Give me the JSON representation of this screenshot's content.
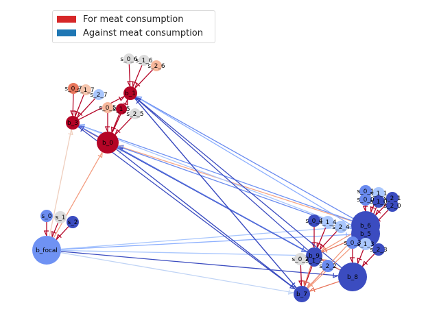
{
  "legend": {
    "items": [
      {
        "label": "For meat consumption",
        "color": "#d62728"
      },
      {
        "label": "Against meat consumption",
        "color": "#1f77b4"
      }
    ]
  },
  "nodes": [
    {
      "id": "s_0_6",
      "label": "s_0_6",
      "color": "#dcdcdc"
    },
    {
      "id": "s_1_6",
      "label": "s_1_6",
      "color": "#dcdcdc"
    },
    {
      "id": "s_2_6",
      "label": "s_2_6",
      "color": "#f7b89c"
    },
    {
      "id": "s_0_7",
      "label": "s_0_7",
      "color": "#e8765c"
    },
    {
      "id": "s_1_7",
      "label": "s_1_7",
      "color": "#f5c4ac"
    },
    {
      "id": "s_2_7",
      "label": "s_2_7",
      "color": "#aac7fd"
    },
    {
      "id": "b_1",
      "label": "b_1",
      "color": "#b40426"
    },
    {
      "id": "s_0_5",
      "label": "s_0_5",
      "color": "#f7b89c"
    },
    {
      "id": "s_1_5",
      "label": "s_1_5",
      "color": "#b40426"
    },
    {
      "id": "s_2_5",
      "label": "s_2_5",
      "color": "#dcdcdc"
    },
    {
      "id": "b_3",
      "label": "b_3",
      "color": "#b40426"
    },
    {
      "id": "b_0",
      "label": "b_0",
      "color": "#b40426"
    },
    {
      "id": "s_0",
      "label": "s_0",
      "color": "#6a8bef"
    },
    {
      "id": "s_1",
      "label": "s_1",
      "color": "#dcdcdc"
    },
    {
      "id": "s_2",
      "label": "s_2",
      "color": "#3b4cc0"
    },
    {
      "id": "b_focal",
      "label": "b_focal",
      "color": "#6f92f3"
    },
    {
      "id": "s_0_1",
      "label": "s_0_1",
      "color": "#6a8bef"
    },
    {
      "id": "s_1_1",
      "label": "s_1_1",
      "color": "#aac7fd"
    },
    {
      "id": "s_2_1",
      "label": "s_2_1",
      "color": "#3b4cc0"
    },
    {
      "id": "s_0_0",
      "label": "s_0_0",
      "color": "#6a8bef"
    },
    {
      "id": "s_1_0",
      "label": "s_1_0",
      "color": "#3b4cc0"
    },
    {
      "id": "s_2_0",
      "label": "s_2_0",
      "color": "#3b4cc0"
    },
    {
      "id": "b_6",
      "label": "b_6",
      "color": "#3b4cc0"
    },
    {
      "id": "b_5",
      "label": "b_5",
      "color": "#3b4cc0"
    },
    {
      "id": "s_0_4",
      "label": "s_0_4",
      "color": "#3b4cc0"
    },
    {
      "id": "s_1_4",
      "label": "s_1_4",
      "color": "#aac7fd"
    },
    {
      "id": "s_2_4",
      "label": "s_2_4",
      "color": "#aac7fd"
    },
    {
      "id": "s_0_3",
      "label": "s_0_3",
      "color": "#6a8bef"
    },
    {
      "id": "s_1_3",
      "label": "s_1_3",
      "color": "#aac7fd"
    },
    {
      "id": "s_2_3",
      "label": "s_2_3",
      "color": "#3b4cc0"
    },
    {
      "id": "b_9",
      "label": "b_9",
      "color": "#3b4cc0"
    },
    {
      "id": "s_0_2",
      "label": "s_0_2",
      "color": "#dcdcdc"
    },
    {
      "id": "s_1_2",
      "label": "s_1_2",
      "color": "#3b4cc0"
    },
    {
      "id": "s_2_2",
      "label": "s_2_2",
      "color": "#6a8bef"
    },
    {
      "id": "b_8",
      "label": "b_8",
      "color": "#3b4cc0"
    },
    {
      "id": "b_7",
      "label": "b_7",
      "color": "#3b4cc0"
    }
  ],
  "edges": [
    {
      "from": "s_0_6",
      "to": "b_1",
      "color": "#b40426"
    },
    {
      "from": "s_1_6",
      "to": "b_1",
      "color": "#b40426"
    },
    {
      "from": "s_2_6",
      "to": "b_1",
      "color": "#b40426"
    },
    {
      "from": "s_0_7",
      "to": "b_3",
      "color": "#b40426"
    },
    {
      "from": "s_1_7",
      "to": "b_3",
      "color": "#b40426"
    },
    {
      "from": "s_2_7",
      "to": "b_3",
      "color": "#b40426"
    },
    {
      "from": "s_0_5",
      "to": "b_0",
      "color": "#b40426"
    },
    {
      "from": "s_1_5",
      "to": "b_0",
      "color": "#b40426"
    },
    {
      "from": "s_2_5",
      "to": "b_0",
      "color": "#b40426"
    },
    {
      "from": "b_0",
      "to": "b_1",
      "color": "#b40426"
    },
    {
      "from": "b_0",
      "to": "b_3",
      "color": "#b40426"
    },
    {
      "from": "b_3",
      "to": "b_1",
      "color": "#b40426"
    },
    {
      "from": "s_0",
      "to": "b_focal",
      "color": "#b40426"
    },
    {
      "from": "s_1",
      "to": "b_focal",
      "color": "#b40426"
    },
    {
      "from": "s_2",
      "to": "b_focal",
      "color": "#b40426"
    },
    {
      "from": "b_focal",
      "to": "b_0",
      "color": "#f39c7f"
    },
    {
      "from": "b_focal",
      "to": "b_3",
      "color": "#efcebd"
    },
    {
      "from": "b_focal",
      "to": "b_6",
      "color": "#aac7fd"
    },
    {
      "from": "b_focal",
      "to": "b_5",
      "color": "#8caffe"
    },
    {
      "from": "b_focal",
      "to": "b_9",
      "color": "#aac7fd"
    },
    {
      "from": "b_focal",
      "to": "b_8",
      "color": "#3b4cc0"
    },
    {
      "from": "b_focal",
      "to": "b_7",
      "color": "#c0d4f5"
    },
    {
      "from": "s_0_1",
      "to": "b_6",
      "color": "#b40426"
    },
    {
      "from": "s_1_1",
      "to": "b_6",
      "color": "#b40426"
    },
    {
      "from": "s_2_1",
      "to": "b_6",
      "color": "#b40426"
    },
    {
      "from": "s_0_0",
      "to": "b_5",
      "color": "#b40426"
    },
    {
      "from": "s_1_0",
      "to": "b_5",
      "color": "#b40426"
    },
    {
      "from": "s_2_0",
      "to": "b_5",
      "color": "#b40426"
    },
    {
      "from": "s_0_4",
      "to": "b_9",
      "color": "#b40426"
    },
    {
      "from": "s_1_4",
      "to": "b_9",
      "color": "#b40426"
    },
    {
      "from": "s_2_4",
      "to": "b_9",
      "color": "#b40426"
    },
    {
      "from": "s_0_3",
      "to": "b_8",
      "color": "#b40426"
    },
    {
      "from": "s_1_3",
      "to": "b_8",
      "color": "#b40426"
    },
    {
      "from": "s_2_3",
      "to": "b_8",
      "color": "#b40426"
    },
    {
      "from": "s_0_2",
      "to": "b_7",
      "color": "#b40426"
    },
    {
      "from": "s_1_2",
      "to": "b_7",
      "color": "#b40426"
    },
    {
      "from": "s_2_2",
      "to": "b_7",
      "color": "#b40426"
    },
    {
      "from": "b_6",
      "to": "b_1",
      "color": "#6a8bef"
    },
    {
      "from": "b_6",
      "to": "b_0",
      "color": "#f7a889"
    },
    {
      "from": "b_6",
      "to": "b_3",
      "color": "#6f92f3"
    },
    {
      "from": "b_5",
      "to": "b_1",
      "color": "#8caffe"
    },
    {
      "from": "b_5",
      "to": "b_0",
      "color": "#6a8bef"
    },
    {
      "from": "b_5",
      "to": "b_3",
      "color": "#aac7fd"
    },
    {
      "from": "b_8",
      "to": "b_1",
      "color": "#3b4cc0"
    },
    {
      "from": "b_8",
      "to": "b_0",
      "color": "#3b4cc0"
    },
    {
      "from": "b_8",
      "to": "b_3",
      "color": "#4358cb"
    },
    {
      "from": "b_9",
      "to": "b_1",
      "color": "#3b4cc0"
    },
    {
      "from": "b_9",
      "to": "b_0",
      "color": "#3b4cc0"
    },
    {
      "from": "b_9",
      "to": "b_3",
      "color": "#5572df"
    },
    {
      "from": "b_7",
      "to": "b_1",
      "color": "#3b4cc0"
    },
    {
      "from": "b_7",
      "to": "b_0",
      "color": "#c0d4f5"
    },
    {
      "from": "b_7",
      "to": "b_3",
      "color": "#3b4cc0"
    },
    {
      "from": "b_6",
      "to": "b_9",
      "color": "#f39c7f"
    },
    {
      "from": "b_6",
      "to": "b_7",
      "color": "#f39c7f"
    },
    {
      "from": "b_5",
      "to": "b_9",
      "color": "#e8765c"
    },
    {
      "from": "b_5",
      "to": "b_7",
      "color": "#f39c7f"
    },
    {
      "from": "b_8",
      "to": "b_9",
      "color": "#e8765c"
    },
    {
      "from": "b_8",
      "to": "b_7",
      "color": "#e8765c"
    },
    {
      "from": "b_9",
      "to": "b_7",
      "color": "#e8765c"
    },
    {
      "from": "b_0",
      "to": "b_9",
      "color": "#3b4cc0"
    },
    {
      "from": "b_0",
      "to": "b_7",
      "color": "#3b4cc0"
    },
    {
      "from": "b_3",
      "to": "b_9",
      "color": "#5572df"
    },
    {
      "from": "b_1",
      "to": "b_7",
      "color": "#3b4cc0"
    },
    {
      "from": "b_6",
      "to": "b_5",
      "color": "#3b4cc0"
    }
  ]
}
